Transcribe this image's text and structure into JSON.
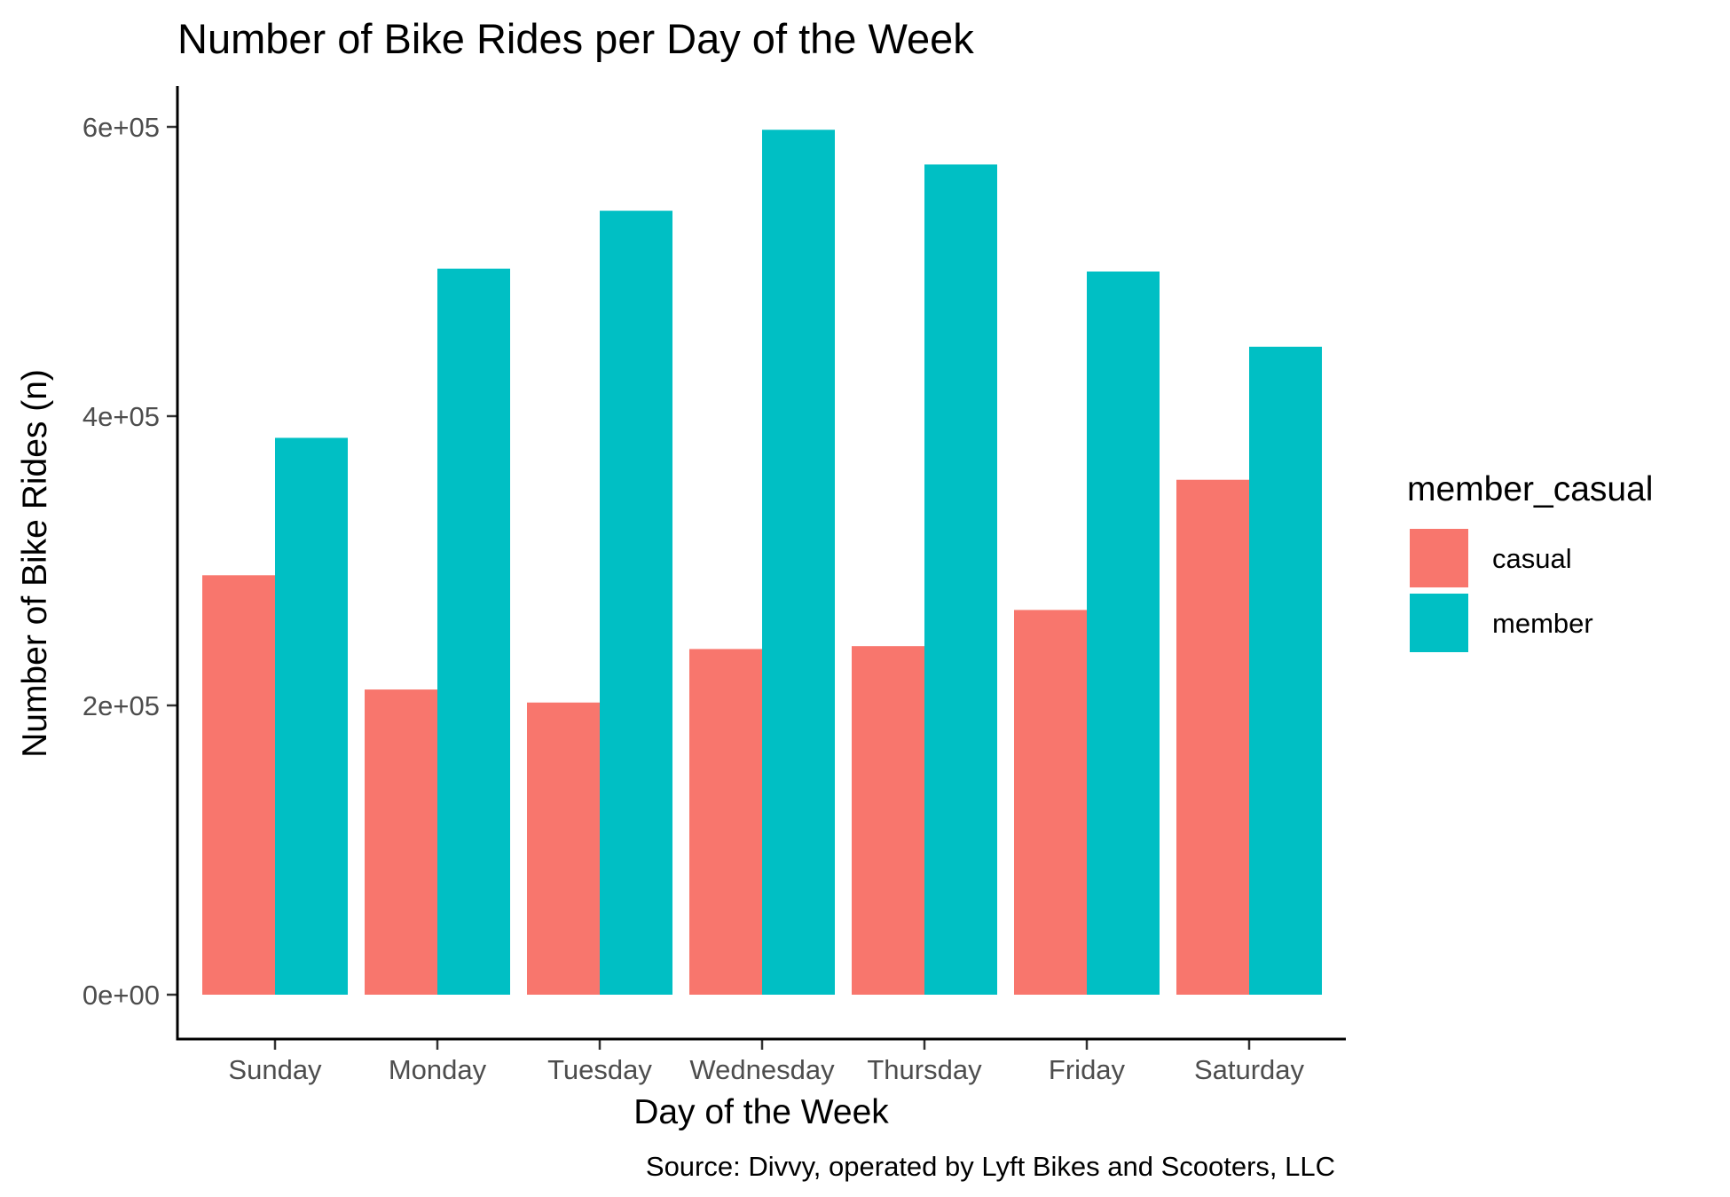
{
  "chart_data": {
    "type": "bar",
    "title": "Number of Bike Rides per Day of the Week",
    "xlabel": "Day of the Week",
    "ylabel": "Number of Bike Rides (n)",
    "caption": "Source: Divvy, operated by Lyft Bikes and Scooters, LLC",
    "categories": [
      "Sunday",
      "Monday",
      "Tuesday",
      "Wednesday",
      "Thursday",
      "Friday",
      "Saturday"
    ],
    "series": [
      {
        "name": "casual",
        "color": "#F8766D",
        "values": [
          290000,
          211000,
          202000,
          239000,
          241000,
          266000,
          356000
        ]
      },
      {
        "name": "member",
        "color": "#00BFC4",
        "values": [
          385000,
          502000,
          542000,
          598000,
          574000,
          500000,
          448000
        ]
      }
    ],
    "yticks": [
      0,
      200000,
      400000,
      600000
    ],
    "ytick_labels": [
      "0e+00",
      "2e+05",
      "4e+05",
      "6e+05"
    ],
    "ylim": [
      0,
      600000
    ],
    "legend": {
      "title": "member_casual",
      "position": "right"
    },
    "grid": false
  }
}
